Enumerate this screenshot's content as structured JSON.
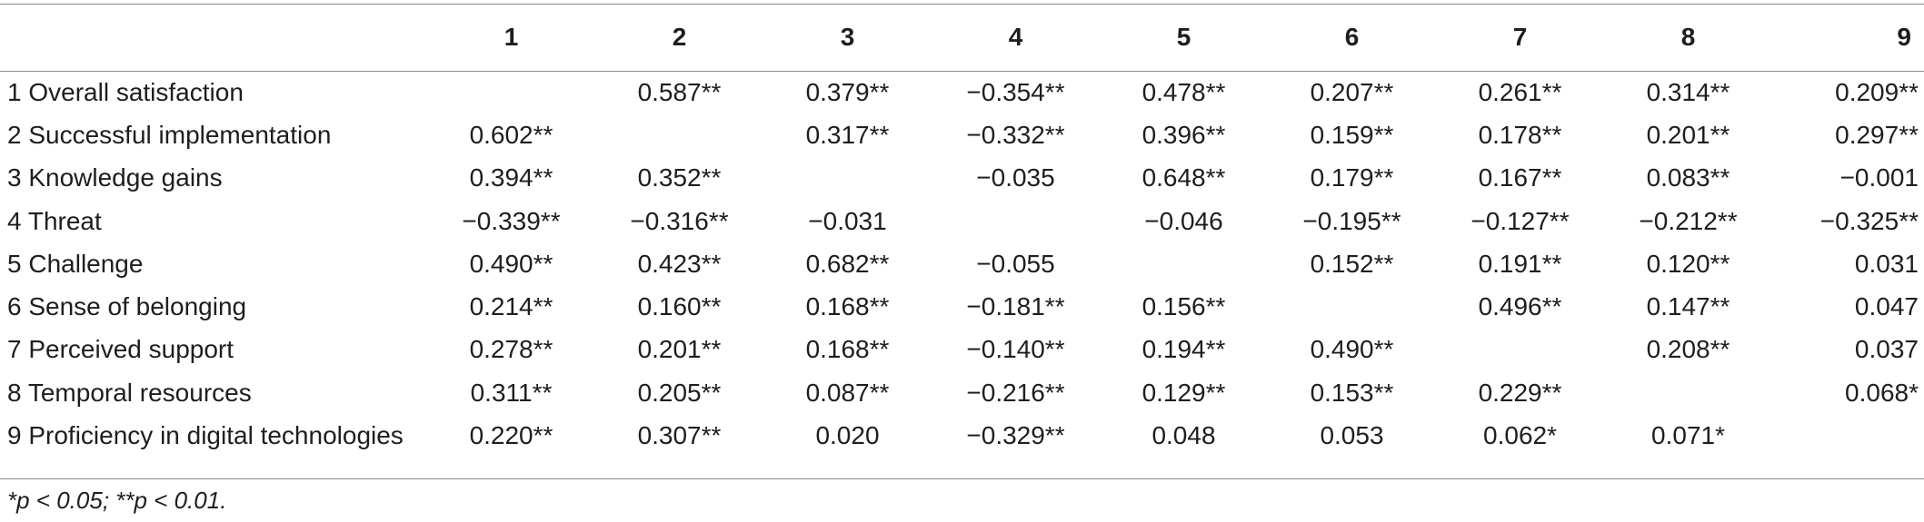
{
  "table": {
    "columns": [
      "",
      "1",
      "2",
      "3",
      "4",
      "5",
      "6",
      "7",
      "8",
      "9"
    ],
    "rows": [
      {
        "label": "1 Overall satisfaction",
        "values": [
          "",
          "0.587**",
          "0.379**",
          "−0.354**",
          "0.478**",
          "0.207**",
          "0.261**",
          "0.314**",
          "0.209**"
        ]
      },
      {
        "label": "2 Successful implementation",
        "values": [
          "0.602**",
          "",
          "0.317**",
          "−0.332**",
          "0.396**",
          "0.159**",
          "0.178**",
          "0.201**",
          "0.297**"
        ]
      },
      {
        "label": "3 Knowledge gains",
        "values": [
          "0.394**",
          "0.352**",
          "",
          "−0.035",
          "0.648**",
          "0.179**",
          "0.167**",
          "0.083**",
          "−0.001"
        ]
      },
      {
        "label": "4 Threat",
        "values": [
          "−0.339**",
          "−0.316**",
          "−0.031",
          "",
          "−0.046",
          "−0.195**",
          "−0.127**",
          "−0.212**",
          "−0.325**"
        ]
      },
      {
        "label": "5 Challenge",
        "values": [
          "0.490**",
          "0.423**",
          "0.682**",
          "−0.055",
          "",
          "0.152**",
          "0.191**",
          "0.120**",
          "0.031"
        ]
      },
      {
        "label": "6 Sense of belonging",
        "values": [
          "0.214**",
          "0.160**",
          "0.168**",
          "−0.181**",
          "0.156**",
          "",
          "0.496**",
          "0.147**",
          "0.047"
        ]
      },
      {
        "label": "7 Perceived support",
        "values": [
          "0.278**",
          "0.201**",
          "0.168**",
          "−0.140**",
          "0.194**",
          "0.490**",
          "",
          "0.208**",
          "0.037"
        ]
      },
      {
        "label": "8 Temporal resources",
        "values": [
          "0.311**",
          "0.205**",
          "0.087**",
          "−0.216**",
          "0.129**",
          "0.153**",
          "0.229**",
          "",
          "0.068*"
        ]
      },
      {
        "label": "9 Proficiency in digital technologies",
        "values": [
          "0.220**",
          "0.307**",
          "0.020",
          "−0.329**",
          "0.048",
          "0.053",
          "0.062*",
          "0.071*",
          ""
        ]
      }
    ]
  },
  "footnote": "*p < 0.05; **p < 0.01."
}
